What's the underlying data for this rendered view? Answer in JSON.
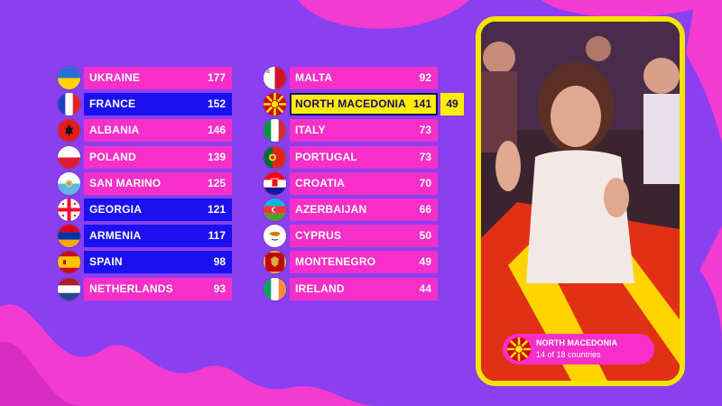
{
  "scoreboard": {
    "left": [
      {
        "country": "UKRAINE",
        "points": "177",
        "style": "pink",
        "flag": "ukraine-flag"
      },
      {
        "country": "FRANCE",
        "points": "152",
        "style": "blue",
        "flag": "france-flag"
      },
      {
        "country": "ALBANIA",
        "points": "146",
        "style": "pink",
        "flag": "albania-flag"
      },
      {
        "country": "POLAND",
        "points": "139",
        "style": "pink",
        "flag": "poland-flag"
      },
      {
        "country": "SAN MARINO",
        "points": "125",
        "style": "pink",
        "flag": "san-marino-flag"
      },
      {
        "country": "GEORGIA",
        "points": "121",
        "style": "blue",
        "flag": "georgia-flag"
      },
      {
        "country": "ARMENIA",
        "points": "117",
        "style": "blue",
        "flag": "armenia-flag"
      },
      {
        "country": "SPAIN",
        "points": "98",
        "style": "blue",
        "flag": "spain-flag"
      },
      {
        "country": "NETHERLANDS",
        "points": "93",
        "style": "pink",
        "flag": "netherlands-flag"
      }
    ],
    "right": [
      {
        "country": "MALTA",
        "points": "92",
        "style": "pink",
        "flag": "malta-flag"
      },
      {
        "country": "NORTH MACEDONIA",
        "points": "141",
        "style": "highlight",
        "flag": "north-macedonia-flag",
        "new_points": "49"
      },
      {
        "country": "ITALY",
        "points": "73",
        "style": "pink",
        "flag": "italy-flag"
      },
      {
        "country": "PORTUGAL",
        "points": "73",
        "style": "pink",
        "flag": "portugal-flag"
      },
      {
        "country": "CROATIA",
        "points": "70",
        "style": "pink",
        "flag": "croatia-flag"
      },
      {
        "country": "AZERBAIJAN",
        "points": "66",
        "style": "pink",
        "flag": "azerbaijan-flag"
      },
      {
        "country": "CYPRUS",
        "points": "50",
        "style": "pink",
        "flag": "cyprus-flag"
      },
      {
        "country": "MONTENEGRO",
        "points": "49",
        "style": "pink",
        "flag": "montenegro-flag"
      },
      {
        "country": "IRELAND",
        "points": "44",
        "style": "pink",
        "flag": "ireland-flag"
      }
    ]
  },
  "caption": {
    "country": "NORTH MACEDONIA",
    "subtitle": "14 of 18 countries",
    "flag": "north-macedonia-flag"
  },
  "colors": {
    "background": "#8a3ff0",
    "pink_bar": "#f72fc9",
    "blue_bar": "#1a10f0",
    "highlight_bar": "#ffee00",
    "panel_border": "#f5e400"
  }
}
